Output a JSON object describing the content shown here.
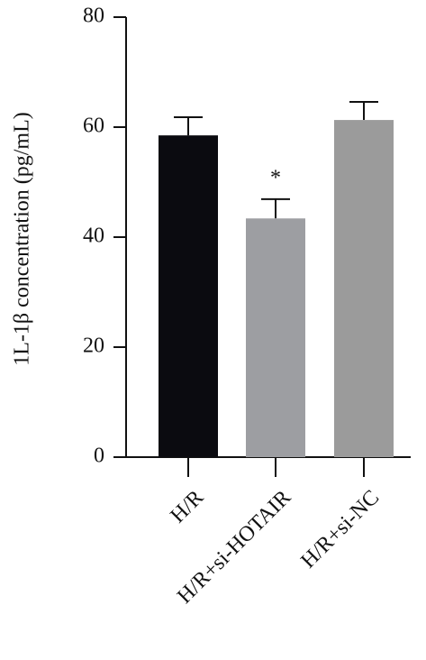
{
  "chart_data": {
    "type": "bar",
    "y_label": "1L-1β concentration (pg/mL)",
    "categories": [
      "H/R",
      "H/R+si-HOTAIR",
      "H/R+si-NC"
    ],
    "values": [
      58.5,
      43.4,
      61.3
    ],
    "errors": [
      3.3,
      3.5,
      3.3
    ],
    "colors": [
      "#0b0b10",
      "#9d9ea2",
      "#9b9b9b"
    ],
    "annotations": [
      {
        "category": 1,
        "text": "*"
      }
    ],
    "ylim": [
      0,
      80
    ],
    "yticks": [
      0,
      20,
      40,
      60,
      80
    ],
    "grid": false
  }
}
